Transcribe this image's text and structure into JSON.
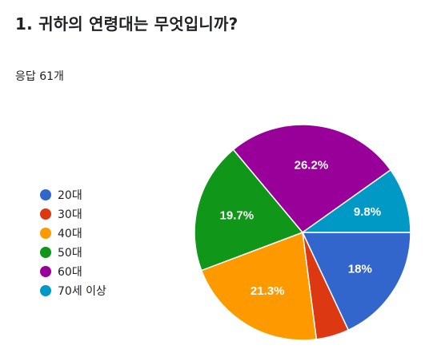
{
  "question": {
    "title": "1. 귀하의 연령대는 무엇입니까?",
    "response_count": "응답 61개"
  },
  "chart_data": {
    "type": "pie",
    "title": "1. 귀하의 연령대는 무엇입니까?",
    "legend_position": "left",
    "start_angle_deg": 90,
    "slices": [
      {
        "label": "20대",
        "count": 11,
        "percent_label": "18%",
        "color": "#3366cc"
      },
      {
        "label": "30대",
        "count": 3,
        "percent_label": "",
        "color": "#dc3912"
      },
      {
        "label": "40대",
        "count": 13,
        "percent_label": "21.3%",
        "color": "#ff9900"
      },
      {
        "label": "50대",
        "count": 12,
        "percent_label": "19.7%",
        "color": "#109618"
      },
      {
        "label": "60대",
        "count": 16,
        "percent_label": "26.2%",
        "color": "#990099"
      },
      {
        "label": "70세 이상",
        "count": 6,
        "percent_label": "9.8%",
        "color": "#0099c6"
      }
    ]
  }
}
